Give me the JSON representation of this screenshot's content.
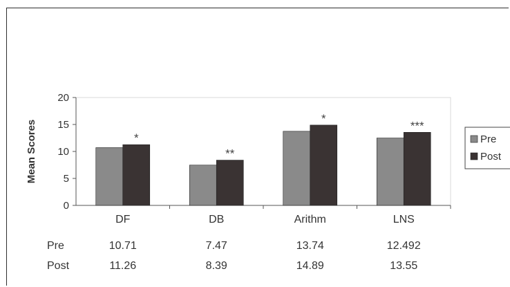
{
  "chart_data": {
    "type": "bar",
    "ylabel": "Mean Scores",
    "xlabel": "",
    "ylim": [
      0,
      20
    ],
    "yticks": [
      "0",
      "5",
      "10",
      "15",
      "20"
    ],
    "categories": [
      "DF",
      "DB",
      "Arithm",
      "LNS"
    ],
    "series": [
      {
        "name": "Pre",
        "values": [
          10.71,
          7.47,
          13.74,
          12.492
        ],
        "color": "#8a8a8a"
      },
      {
        "name": "Post",
        "values": [
          11.26,
          8.39,
          14.89,
          13.55
        ],
        "color": "#3a3333"
      }
    ],
    "significance": [
      "*",
      "**",
      "*",
      "***"
    ],
    "table": {
      "rows": [
        {
          "label": "Pre",
          "values": [
            "10.71",
            "7.47",
            "13.74",
            "12.492"
          ]
        },
        {
          "label": "Post",
          "values": [
            "11.26",
            "8.39",
            "14.89",
            "13.55"
          ]
        }
      ]
    },
    "legend_position": "right",
    "grid": false
  }
}
